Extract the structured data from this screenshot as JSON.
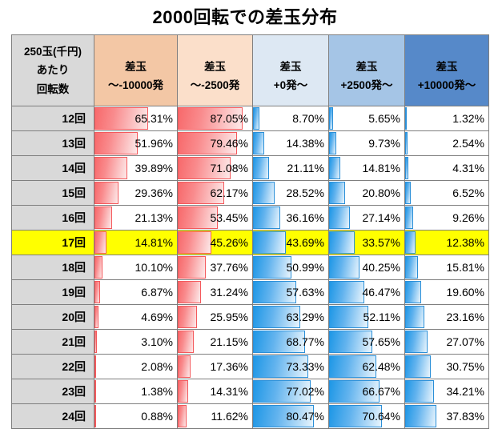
{
  "title": "2000回転での差玉分布",
  "table": {
    "corner_header_lines": [
      "250玉(千円)",
      "あたり",
      "回転数"
    ],
    "columns": [
      {
        "line1": "差玉",
        "line2": "～-10000発",
        "header_bg": "#f3c7a5",
        "bar": "red"
      },
      {
        "line1": "差玉",
        "line2": "～-2500発",
        "header_bg": "#fbdfca",
        "bar": "red"
      },
      {
        "line1": "差玉",
        "line2": "+0発～",
        "header_bg": "#dde8f3",
        "bar": "blue"
      },
      {
        "line1": "差玉",
        "line2": "+2500発～",
        "header_bg": "#a5c5e6",
        "bar": "blue"
      },
      {
        "line1": "差玉",
        "line2": "+10000発～",
        "header_bg": "#5689c9",
        "bar": "blue"
      }
    ],
    "rows": [
      {
        "label": "12回",
        "values": [
          "65.31%",
          "87.05%",
          "8.70%",
          "5.65%",
          "1.32%"
        ],
        "highlight": false
      },
      {
        "label": "13回",
        "values": [
          "51.96%",
          "79.46%",
          "14.38%",
          "9.73%",
          "2.54%"
        ],
        "highlight": false
      },
      {
        "label": "14回",
        "values": [
          "39.89%",
          "71.08%",
          "21.11%",
          "14.81%",
          "4.31%"
        ],
        "highlight": false
      },
      {
        "label": "15回",
        "values": [
          "29.36%",
          "62.17%",
          "28.52%",
          "20.80%",
          "6.52%"
        ],
        "highlight": false
      },
      {
        "label": "16回",
        "values": [
          "21.13%",
          "53.45%",
          "36.16%",
          "27.14%",
          "9.26%"
        ],
        "highlight": false
      },
      {
        "label": "17回",
        "values": [
          "14.81%",
          "45.26%",
          "43.69%",
          "33.57%",
          "12.38%"
        ],
        "highlight": true
      },
      {
        "label": "18回",
        "values": [
          "10.10%",
          "37.76%",
          "50.99%",
          "40.25%",
          "15.81%"
        ],
        "highlight": false
      },
      {
        "label": "19回",
        "values": [
          "6.87%",
          "31.24%",
          "57.63%",
          "46.47%",
          "19.60%"
        ],
        "highlight": false
      },
      {
        "label": "20回",
        "values": [
          "4.69%",
          "25.95%",
          "63.29%",
          "52.11%",
          "23.16%"
        ],
        "highlight": false
      },
      {
        "label": "21回",
        "values": [
          "3.10%",
          "21.15%",
          "68.77%",
          "57.65%",
          "27.07%"
        ],
        "highlight": false
      },
      {
        "label": "22回",
        "values": [
          "2.08%",
          "17.36%",
          "73.33%",
          "62.48%",
          "30.75%"
        ],
        "highlight": false
      },
      {
        "label": "23回",
        "values": [
          "1.38%",
          "14.31%",
          "77.02%",
          "66.67%",
          "34.21%"
        ],
        "highlight": false
      },
      {
        "label": "24回",
        "values": [
          "0.88%",
          "11.62%",
          "80.47%",
          "70.64%",
          "37.83%"
        ],
        "highlight": false
      }
    ]
  },
  "colors": {
    "row_label_bg": "#d9d9d9",
    "highlight_bg": "#ffff00",
    "header_orange_strong": "#f3c7a5",
    "header_orange_light": "#fbdfca",
    "header_blue_light": "#dde8f3",
    "header_blue_mid": "#a5c5e6",
    "header_blue_strong": "#5689c9",
    "bar_red": "#f8696b",
    "bar_blue": "#1e97e6",
    "cell_border": "#7f7f7f"
  },
  "chart_data": {
    "type": "table",
    "title": "2000回転での差玉分布",
    "row_header_label": "250玉(千円)あたり回転数",
    "categories": [
      "12回",
      "13回",
      "14回",
      "15回",
      "16回",
      "17回",
      "18回",
      "19回",
      "20回",
      "21回",
      "22回",
      "23回",
      "24回"
    ],
    "series": [
      {
        "name": "差玉 ～-10000発",
        "values": [
          65.31,
          51.96,
          39.89,
          29.36,
          21.13,
          14.81,
          10.1,
          6.87,
          4.69,
          3.1,
          2.08,
          1.38,
          0.88
        ]
      },
      {
        "name": "差玉 ～-2500発",
        "values": [
          87.05,
          79.46,
          71.08,
          62.17,
          53.45,
          45.26,
          37.76,
          31.24,
          25.95,
          21.15,
          17.36,
          14.31,
          11.62
        ]
      },
      {
        "name": "差玉 +0発～",
        "values": [
          8.7,
          14.38,
          21.11,
          28.52,
          36.16,
          43.69,
          50.99,
          57.63,
          63.29,
          68.77,
          73.33,
          77.02,
          80.47
        ]
      },
      {
        "name": "差玉 +2500発～",
        "values": [
          5.65,
          9.73,
          14.81,
          20.8,
          27.14,
          33.57,
          40.25,
          46.47,
          52.11,
          57.65,
          62.48,
          66.67,
          70.64
        ]
      },
      {
        "name": "差玉 +10000発～",
        "values": [
          1.32,
          2.54,
          4.31,
          6.52,
          9.26,
          12.38,
          15.81,
          19.6,
          23.16,
          27.07,
          30.75,
          34.21,
          37.83
        ]
      }
    ],
    "unit": "%",
    "bar_scale": [
      0,
      100
    ],
    "highlighted_category": "17回",
    "notes": "in-cell data bars; red bars for negative差玉 columns, blue bars for positive差玉 columns"
  }
}
